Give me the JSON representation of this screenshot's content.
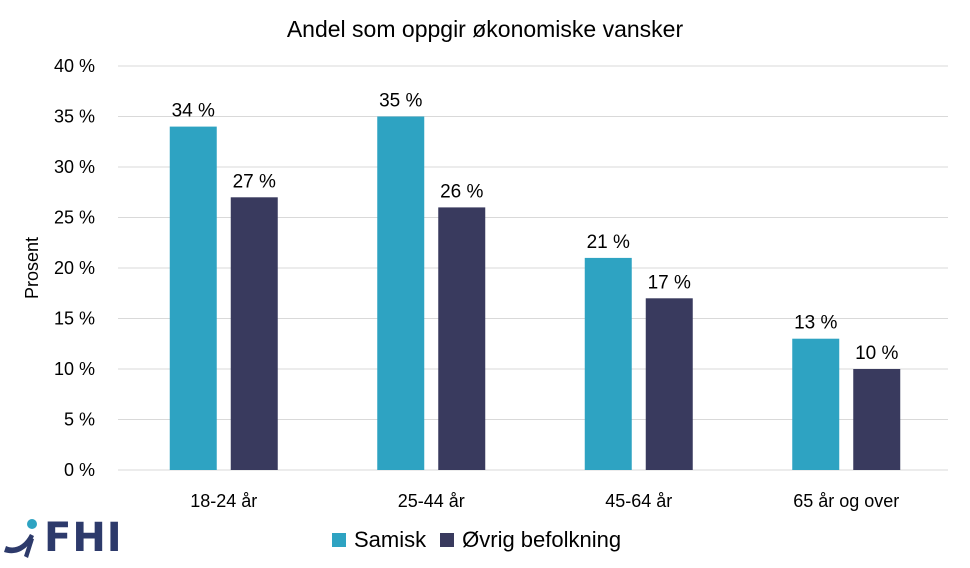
{
  "chart_data": {
    "type": "bar",
    "title": "Andel som oppgir økonomiske vansker",
    "ylabel": "Prosent",
    "xlabel": "",
    "categories": [
      "18-24 år",
      "25-44 år",
      "45-64 år",
      "65 år og over"
    ],
    "series": [
      {
        "name": "Samisk",
        "color": "#2ea3c2",
        "values": [
          34,
          35,
          21,
          13
        ],
        "labels": [
          "34 %",
          "35 %",
          "21 %",
          "13 %"
        ]
      },
      {
        "name": "Øvrig befolkning",
        "color": "#393a5e",
        "values": [
          27,
          26,
          17,
          10
        ],
        "labels": [
          "27 %",
          "26 %",
          "17 %",
          "10 %"
        ]
      }
    ],
    "ylim": [
      0,
      40
    ],
    "yticks": [
      0,
      5,
      10,
      15,
      20,
      25,
      30,
      35,
      40
    ],
    "ytick_labels": [
      "0 %",
      "5 %",
      "10 %",
      "15 %",
      "20 %",
      "25 %",
      "30 %",
      "35 %",
      "40 %"
    ],
    "grid": true,
    "legend_position": "bottom"
  },
  "logo": {
    "text": "FHI",
    "color": "#2d3a6b"
  }
}
